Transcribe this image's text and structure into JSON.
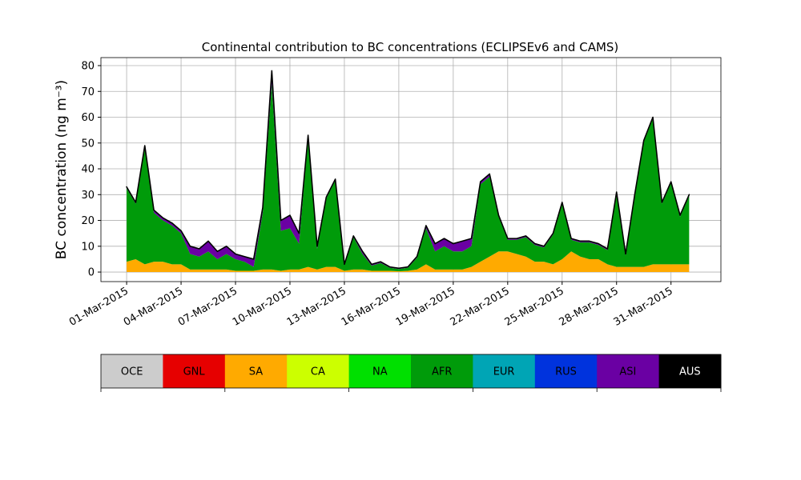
{
  "chart_data": {
    "type": "stacked_area",
    "title": "Continental contribution to BC concentrations (ECLIPSEv6 and CAMS)",
    "y_label": "BC concentration (ng m⁻³)",
    "x": [
      "2015-03-01T00:00",
      "2015-03-01T12:00",
      "2015-03-02T00:00",
      "2015-03-02T12:00",
      "2015-03-03T00:00",
      "2015-03-03T12:00",
      "2015-03-04T00:00",
      "2015-03-04T12:00",
      "2015-03-05T00:00",
      "2015-03-05T12:00",
      "2015-03-06T00:00",
      "2015-03-06T12:00",
      "2015-03-07T00:00",
      "2015-03-07T12:00",
      "2015-03-08T00:00",
      "2015-03-08T12:00",
      "2015-03-09T00:00",
      "2015-03-09T12:00",
      "2015-03-10T00:00",
      "2015-03-10T12:00",
      "2015-03-11T00:00",
      "2015-03-11T12:00",
      "2015-03-12T00:00",
      "2015-03-12T12:00",
      "2015-03-13T00:00",
      "2015-03-13T12:00",
      "2015-03-14T00:00",
      "2015-03-14T12:00",
      "2015-03-15T00:00",
      "2015-03-15T12:00",
      "2015-03-16T00:00",
      "2015-03-16T12:00",
      "2015-03-17T00:00",
      "2015-03-17T12:00",
      "2015-03-18T00:00",
      "2015-03-18T12:00",
      "2015-03-19T00:00",
      "2015-03-19T12:00",
      "2015-03-20T00:00",
      "2015-03-20T12:00",
      "2015-03-21T00:00",
      "2015-03-21T12:00",
      "2015-03-22T00:00",
      "2015-03-22T12:00",
      "2015-03-23T00:00",
      "2015-03-23T12:00",
      "2015-03-24T00:00",
      "2015-03-24T12:00",
      "2015-03-25T00:00",
      "2015-03-25T12:00",
      "2015-03-26T00:00",
      "2015-03-26T12:00",
      "2015-03-27T00:00",
      "2015-03-27T12:00",
      "2015-03-28T00:00",
      "2015-03-28T12:00",
      "2015-03-29T00:00",
      "2015-03-29T12:00",
      "2015-03-30T00:00",
      "2015-03-30T12:00",
      "2015-03-31T00:00",
      "2015-03-31T12:00",
      "2015-04-01T00:00"
    ],
    "series": [
      {
        "name": "OCE",
        "color": "#cccccc",
        "values": [
          0,
          0,
          0,
          0,
          0,
          0,
          0,
          0,
          0,
          0,
          0,
          0,
          0,
          0,
          0,
          0,
          0,
          0,
          0,
          0,
          0,
          0,
          0,
          0,
          0,
          0,
          0,
          0,
          0,
          0,
          0,
          0,
          0,
          0,
          0,
          0,
          0,
          0,
          0,
          0,
          0,
          0,
          0,
          0,
          0,
          0,
          0,
          0,
          0,
          0,
          0,
          0,
          0,
          0,
          0,
          0,
          0,
          0,
          0,
          0,
          0,
          0,
          0
        ]
      },
      {
        "name": "GNL",
        "color": "#e60000",
        "values": [
          0,
          0,
          0,
          0,
          0,
          0,
          0,
          0,
          0,
          0,
          0,
          0,
          0,
          0,
          0,
          0,
          0,
          0,
          0,
          0,
          0,
          0,
          0,
          0,
          0,
          0,
          0,
          0,
          0,
          0,
          0,
          0,
          0,
          0,
          0,
          0,
          0,
          0,
          0,
          0,
          0,
          0,
          0,
          0,
          0,
          0,
          0,
          0,
          0,
          0,
          0,
          0,
          0,
          0,
          0,
          0,
          0,
          0,
          0,
          0,
          0,
          0,
          0
        ]
      },
      {
        "name": "SA",
        "color": "#ffaa00",
        "values": [
          4,
          5,
          3,
          4,
          4,
          3,
          3,
          1,
          1,
          1,
          1,
          1,
          0.5,
          0.5,
          0.5,
          1,
          1,
          0.5,
          1,
          1,
          2,
          1,
          2,
          2,
          0.5,
          1,
          1,
          0.5,
          0.5,
          0.5,
          0.3,
          0.5,
          1,
          3,
          1,
          1,
          1,
          1,
          2,
          4,
          6,
          8,
          8,
          7,
          6,
          4,
          4,
          3,
          5,
          8,
          6,
          5,
          5,
          3,
          2,
          2,
          2,
          2,
          3,
          3,
          3,
          3,
          3
        ]
      },
      {
        "name": "CA",
        "color": "#ccff00",
        "values": [
          0,
          0,
          0,
          0,
          0,
          0,
          0,
          0,
          0,
          0,
          0,
          0,
          0,
          0,
          0,
          0,
          0,
          0,
          0,
          0,
          0,
          0,
          0,
          0,
          0,
          0,
          0,
          0,
          0,
          0,
          0,
          0,
          0,
          0,
          0,
          0,
          0,
          0,
          0,
          0,
          0,
          0,
          0,
          0,
          0,
          0,
          0,
          0,
          0,
          0,
          0,
          0,
          0,
          0,
          0,
          0,
          0,
          0,
          0,
          0,
          0,
          0,
          0
        ]
      },
      {
        "name": "NA",
        "color": "#00e000",
        "values": [
          0,
          0,
          0,
          0,
          0,
          0,
          0,
          0,
          0,
          0,
          0,
          0,
          0,
          0,
          0,
          0,
          0,
          0,
          0,
          0,
          0,
          0,
          0,
          0,
          0,
          0,
          0,
          0,
          0,
          0,
          0,
          0,
          0,
          0,
          0,
          0,
          0,
          0,
          0,
          0,
          0,
          0,
          0,
          0,
          0,
          0,
          0,
          0,
          0,
          0,
          0,
          0,
          0,
          0,
          0,
          0,
          0,
          0,
          0,
          0,
          0,
          0,
          0
        ]
      },
      {
        "name": "AFR",
        "color": "#009b0a",
        "values": [
          28.5,
          21.5,
          45,
          19,
          16,
          15,
          12,
          6,
          5,
          7,
          4,
          6,
          4.5,
          3.5,
          1.5,
          22,
          72,
          15.5,
          16,
          10,
          50,
          8,
          26.5,
          33.5,
          2.2,
          12.5,
          6,
          2,
          3,
          1.2,
          0.9,
          1.2,
          4.5,
          14,
          7,
          9,
          7,
          7,
          8,
          30,
          31,
          13.5,
          4.5,
          5.5,
          7.5,
          6.5,
          5.5,
          11.5,
          21.5,
          4.5,
          5.5,
          6.5,
          5.5,
          5.5,
          28.5,
          4.5,
          27.5,
          48.5,
          56.5,
          23.5,
          31.5,
          18.5,
          26.5
        ]
      },
      {
        "name": "EUR",
        "color": "#00a5b5",
        "values": [
          0,
          0,
          0,
          0,
          0,
          0,
          0,
          0,
          0,
          0,
          0,
          0,
          0,
          0,
          0,
          0,
          0,
          0,
          0,
          0,
          0,
          0,
          0,
          0,
          0,
          0,
          0,
          0,
          0,
          0,
          0,
          0,
          0,
          0,
          0,
          0,
          0,
          0,
          0,
          0,
          0,
          0,
          0,
          0,
          0,
          0,
          0,
          0,
          0,
          0,
          0,
          0,
          0,
          0,
          0,
          0,
          0,
          0,
          0,
          0,
          0,
          0,
          0
        ]
      },
      {
        "name": "RUS",
        "color": "#0033dd",
        "values": [
          0,
          0,
          0,
          0,
          0,
          0,
          0,
          0,
          0,
          0,
          0,
          0,
          0,
          0,
          0,
          0,
          0,
          0,
          0,
          0,
          0,
          0,
          0,
          0,
          0,
          0,
          0,
          0,
          0,
          0,
          0,
          0,
          0,
          0,
          0,
          0,
          0,
          0,
          0,
          0,
          0,
          0,
          0,
          0,
          0,
          0,
          0,
          0,
          0,
          0,
          0,
          0,
          0,
          0,
          0,
          0,
          0,
          0,
          0,
          0,
          0,
          0,
          0
        ]
      },
      {
        "name": "ASI",
        "color": "#6a00a3",
        "values": [
          0.5,
          0.5,
          1,
          1,
          1,
          1,
          1,
          3,
          3,
          4,
          3,
          3,
          2,
          2,
          3,
          2,
          5,
          4,
          5,
          4,
          1,
          1,
          0.5,
          0.5,
          0.3,
          0.5,
          1,
          0.5,
          0.5,
          0.3,
          0.3,
          0.3,
          0.5,
          1,
          3,
          3,
          3,
          4,
          3,
          1,
          1,
          0.5,
          0.5,
          0.5,
          0.5,
          0.5,
          0.5,
          0.5,
          0.5,
          0.5,
          0.5,
          0.5,
          0.5,
          0.5,
          0.5,
          0.5,
          0.5,
          0.5,
          0.5,
          0.5,
          0.5,
          0.5,
          0.5
        ]
      },
      {
        "name": "AUS",
        "color": "#000000",
        "values": [
          0,
          0,
          0,
          0,
          0,
          0,
          0,
          0,
          0,
          0,
          0,
          0,
          0,
          0,
          0,
          0,
          0,
          0,
          0,
          0,
          0,
          0,
          0,
          0,
          0,
          0,
          0,
          0,
          0,
          0,
          0,
          0,
          0,
          0,
          0,
          0,
          0,
          0,
          0,
          0,
          0,
          0,
          0,
          0,
          0,
          0,
          0,
          0,
          0,
          0,
          0,
          0,
          0,
          0,
          0,
          0,
          0,
          0,
          0,
          0,
          0,
          0,
          0
        ]
      }
    ],
    "xlim": [
      "2015-02-27T14:00",
      "2015-04-02T18:00"
    ],
    "xticks": [
      {
        "value": "2015-03-01T00:00",
        "label": "01-Mar-2015"
      },
      {
        "value": "2015-03-04T00:00",
        "label": "04-Mar-2015"
      },
      {
        "value": "2015-03-07T00:00",
        "label": "07-Mar-2015"
      },
      {
        "value": "2015-03-10T00:00",
        "label": "10-Mar-2015"
      },
      {
        "value": "2015-03-13T00:00",
        "label": "13-Mar-2015"
      },
      {
        "value": "2015-03-16T00:00",
        "label": "16-Mar-2015"
      },
      {
        "value": "2015-03-19T00:00",
        "label": "19-Mar-2015"
      },
      {
        "value": "2015-03-22T00:00",
        "label": "22-Mar-2015"
      },
      {
        "value": "2015-03-25T00:00",
        "label": "25-Mar-2015"
      },
      {
        "value": "2015-03-28T00:00",
        "label": "28-Mar-2015"
      },
      {
        "value": "2015-03-31T00:00",
        "label": "31-Mar-2015"
      }
    ],
    "ylim": [
      -3.7,
      83.1
    ],
    "yticks": [
      0,
      10,
      20,
      30,
      40,
      50,
      60,
      70,
      80
    ],
    "grid": true
  }
}
